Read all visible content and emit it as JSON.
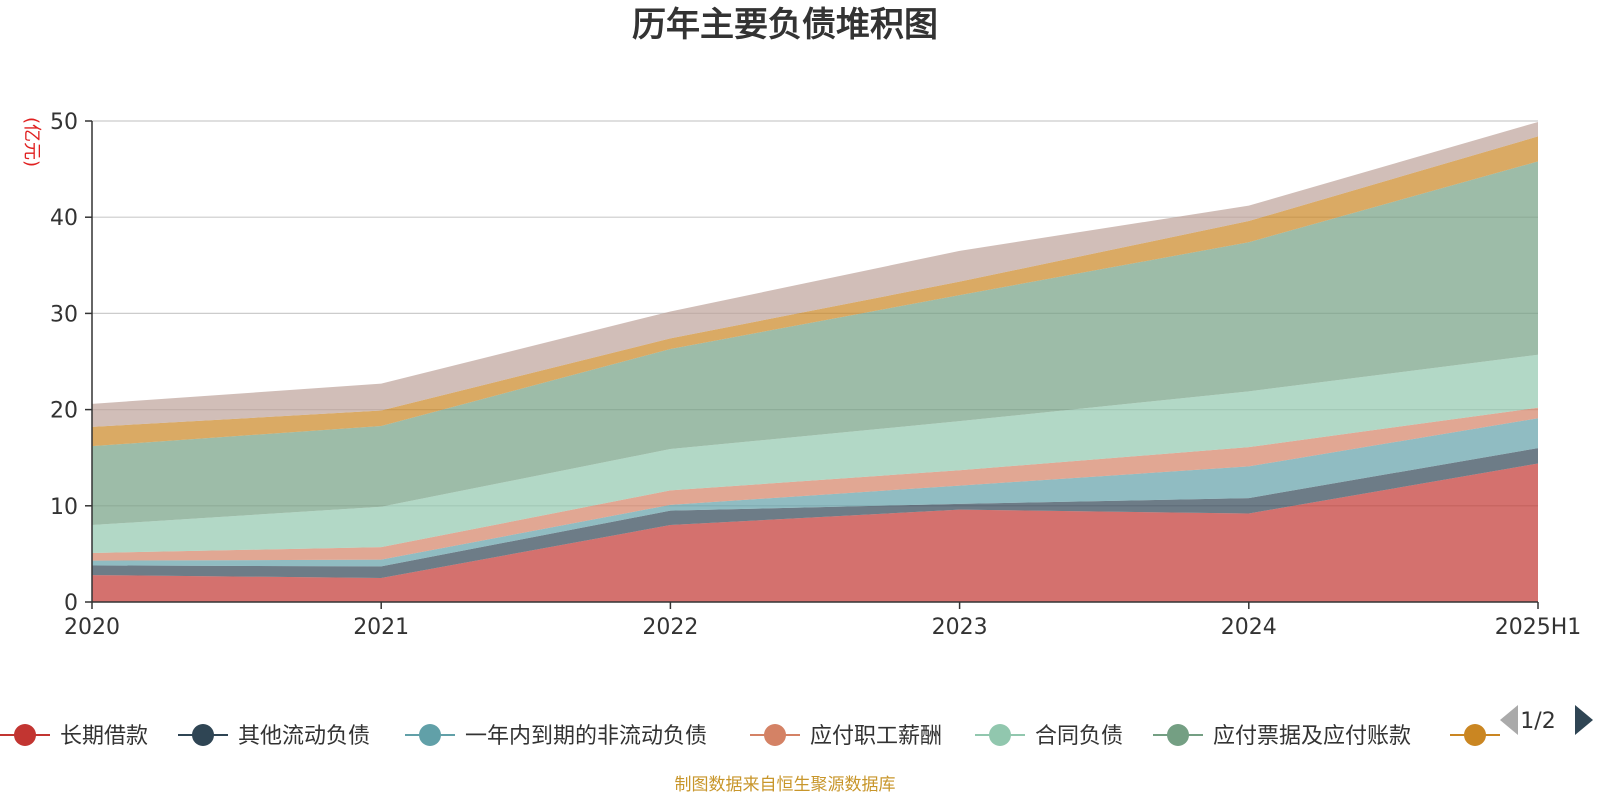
{
  "colors": {
    "background": "#ffffff",
    "grid": "#cccccc",
    "axis": "#333333",
    "unit_label": "#e02020",
    "source": "#c8962b",
    "pager_active": "#2f4554",
    "pager_inactive": "#aaaaaa"
  },
  "chart_data": {
    "type": "area",
    "stacked": true,
    "title": "历年主要负债堆积图",
    "ylabel": "(亿元)",
    "xlabel": "",
    "categories": [
      "2020",
      "2021",
      "2022",
      "2023",
      "2024",
      "2025H1"
    ],
    "ylim": [
      0,
      50
    ],
    "yticks": [
      0,
      10,
      20,
      30,
      40,
      50
    ],
    "grid": true,
    "legend_position": "bottom",
    "series": [
      {
        "name": "长期借款",
        "color": "#c23531",
        "values": [
          2.8,
          2.5,
          8.0,
          9.6,
          9.2,
          14.4
        ]
      },
      {
        "name": "其他流动负债",
        "color": "#2f4554",
        "values": [
          1.0,
          1.2,
          1.5,
          0.6,
          1.6,
          1.6
        ]
      },
      {
        "name": "一年内到期的非流动负债",
        "color": "#61a0a8",
        "values": [
          0.5,
          0.7,
          0.6,
          1.9,
          3.3,
          3.1
        ]
      },
      {
        "name": "应付职工薪酬",
        "color": "#d48265",
        "values": [
          0.8,
          1.3,
          1.5,
          1.6,
          2.0,
          1.1
        ]
      },
      {
        "name": "合同负债",
        "color": "#91c7ae",
        "values": [
          2.9,
          4.2,
          4.3,
          5.1,
          5.8,
          5.5
        ]
      },
      {
        "name": "应付票据及应付账款",
        "color": "#749f83",
        "values": [
          8.2,
          8.4,
          10.4,
          13.1,
          15.5,
          20.1
        ]
      },
      {
        "name": "",
        "color": "#ca8622",
        "values": [
          2.0,
          1.6,
          1.1,
          1.4,
          2.2,
          2.6
        ]
      },
      {
        "name": "",
        "color": "#bda29a",
        "values": [
          2.4,
          2.8,
          2.8,
          3.2,
          1.6,
          1.5
        ]
      }
    ],
    "legend_visible_count": 7,
    "legend_page": "1/2",
    "source_note": "制图数据来自恒生聚源数据库"
  }
}
